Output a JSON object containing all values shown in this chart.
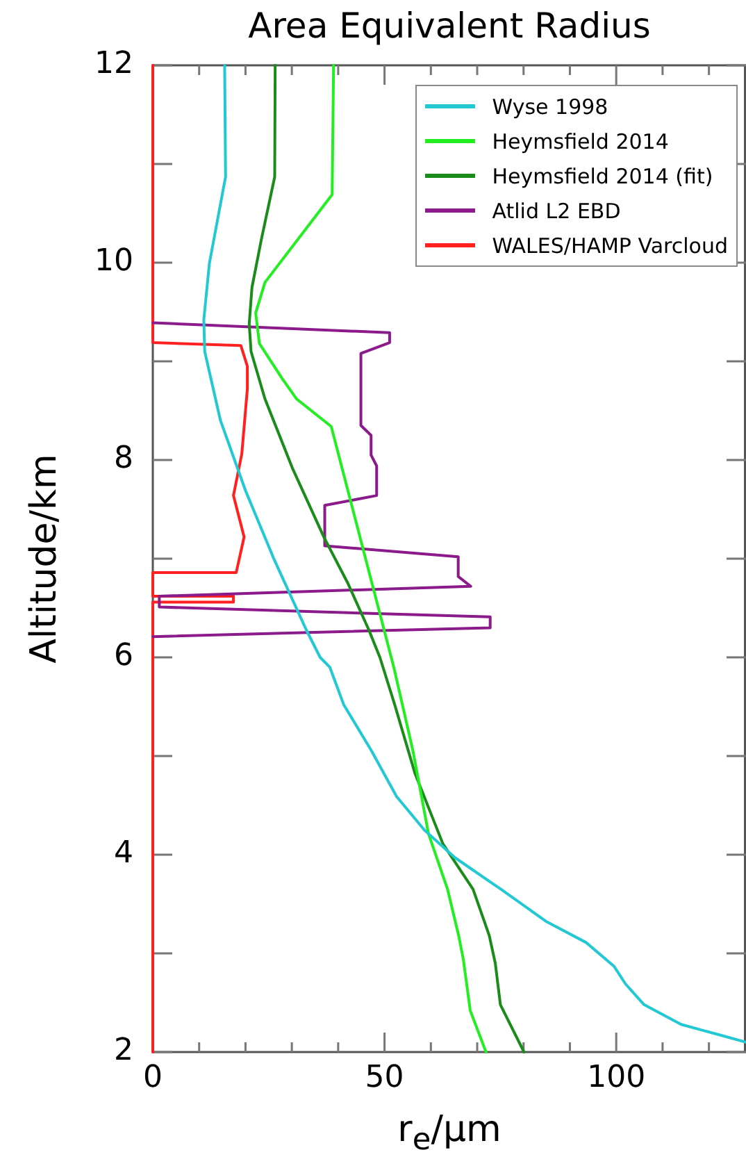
{
  "chart_data": {
    "type": "line",
    "title": "Area Equivalent Radius",
    "xlabel": "r$_{e}$/µm",
    "ylabel": "Altitude/km",
    "xlim": [
      0,
      128
    ],
    "ylim": [
      2,
      12
    ],
    "xticks": [
      0,
      {
        "value": 10,
        "label": null
      },
      {
        "value": 20,
        "label": null
      },
      {
        "value": 30,
        "label": null
      },
      {
        "value": 40,
        "label": null
      },
      50,
      {
        "value": 60,
        "label": null
      },
      {
        "value": 70,
        "label": null
      },
      {
        "value": 80,
        "label": null
      },
      {
        "value": 90,
        "label": null
      },
      100,
      {
        "value": 110,
        "label": null
      },
      {
        "value": 120,
        "label": null
      }
    ],
    "yticks": [
      2,
      {
        "value": 3,
        "label": null
      },
      4,
      {
        "value": 5,
        "label": null
      },
      6,
      {
        "value": 7,
        "label": null
      },
      8,
      {
        "value": 9,
        "label": null
      },
      10,
      {
        "value": 11,
        "label": null
      },
      12
    ],
    "legend": "top right",
    "series": [
      {
        "name": "Wyse 1998",
        "color": "#22c8d2",
        "x": [
          15.5,
          15.7,
          12.2,
          11.0,
          11.2,
          14.6,
          20.0,
          26.2,
          33.1,
          36.1,
          38.2,
          41.2,
          47.1,
          52.6,
          58.6,
          65.2,
          75.1,
          85.0,
          93.5,
          99.5,
          102.0,
          106.0,
          114.0,
          128.0
        ],
        "values": [
          12,
          10.87,
          9.99,
          9.42,
          9.1,
          8.4,
          7.69,
          6.99,
          6.28,
          6.0,
          5.9,
          5.52,
          5.06,
          4.59,
          4.25,
          3.97,
          3.65,
          3.32,
          3.11,
          2.87,
          2.69,
          2.48,
          2.28,
          2.1
        ]
      },
      {
        "name": "Heymsfield 2014",
        "color": "#22ee22",
        "x": [
          39.0,
          38.7,
          24.2,
          22.2,
          23.0,
          28.0,
          31.0,
          38.5,
          52.0,
          56.1,
          59.5,
          63.6,
          66.0,
          67.0,
          68.5,
          71.9
        ],
        "values": [
          12,
          10.69,
          9.8,
          9.49,
          9.18,
          8.82,
          8.62,
          8.34,
          5.9,
          5.06,
          4.21,
          3.65,
          3.18,
          2.94,
          2.42,
          2.0
        ]
      },
      {
        "name": "Heymsfield 2014 (fit)",
        "color": "#1a8c1a",
        "x": [
          26.4,
          26.3,
          23.4,
          21.4,
          20.8,
          21.2,
          24.2,
          30.1,
          37.0,
          42.1,
          46.6,
          49.0,
          52.2,
          56.6,
          62.6,
          69.1,
          72.6,
          73.9,
          75.0,
          80.1
        ],
        "values": [
          12,
          10.87,
          10.23,
          9.75,
          9.38,
          9.1,
          8.62,
          7.92,
          7.21,
          6.75,
          6.28,
          6.0,
          5.52,
          4.82,
          4.11,
          3.65,
          3.18,
          2.9,
          2.48,
          2.0
        ]
      },
      {
        "name": "Atlid L2 EBD",
        "color": "#8b1a8b",
        "x": [
          0,
          51.1,
          51.1,
          44.9,
          44.9,
          47.1,
          47.1,
          48.3,
          48.3,
          37.1,
          37.1,
          65.9,
          65.9,
          68.6,
          1.4,
          1.4,
          72.8,
          72.8,
          0
        ],
        "values": [
          9.39,
          9.29,
          9.19,
          9.08,
          8.35,
          8.25,
          8.05,
          7.94,
          7.64,
          7.54,
          7.13,
          7.02,
          6.82,
          6.72,
          6.62,
          6.51,
          6.41,
          6.3,
          6.21
        ]
      },
      {
        "name": "WALES/HAMP Varcloud",
        "color": "#ff2020",
        "x": [
          0,
          0,
          19.0,
          20.4,
          20.4,
          19.2,
          17.4,
          19.7,
          18.0,
          0,
          0,
          17.4,
          17.4,
          0,
          0
        ],
        "values": [
          12,
          9.19,
          9.16,
          8.95,
          8.72,
          8.06,
          7.64,
          7.22,
          6.86,
          6.86,
          6.62,
          6.62,
          6.56,
          6.56,
          2
        ]
      }
    ]
  }
}
